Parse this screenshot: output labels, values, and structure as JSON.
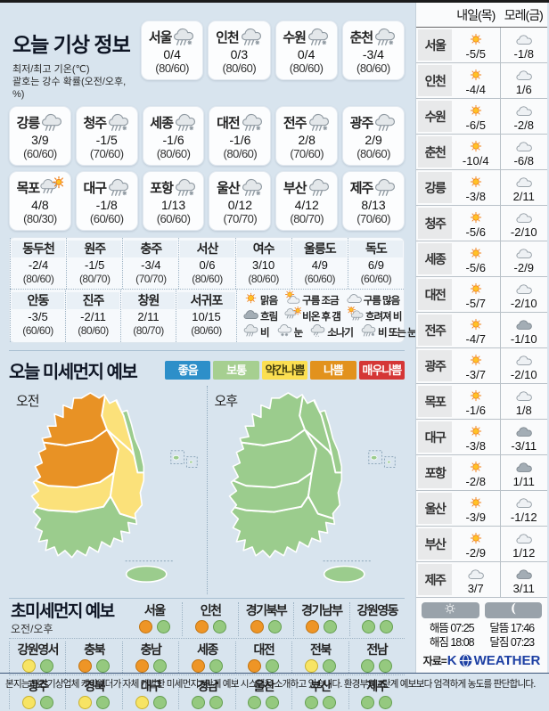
{
  "today": {
    "title": "오늘 기상 정보",
    "sub1": "최저/최고 기온(℃)",
    "sub2": "괄호는 강수 확률(오전/오후, %)",
    "cards_row1": [
      {
        "name": "서울",
        "icon": "rain-snow",
        "temp": "0/4",
        "prob": "(80/60)"
      },
      {
        "name": "인천",
        "icon": "rain-snow",
        "temp": "0/3",
        "prob": "(80/60)"
      },
      {
        "name": "수원",
        "icon": "rain-snow",
        "temp": "0/4",
        "prob": "(80/60)"
      },
      {
        "name": "춘천",
        "icon": "rain-snow",
        "temp": "-3/4",
        "prob": "(80/60)"
      }
    ],
    "cards_row2": [
      {
        "name": "강릉",
        "icon": "rain",
        "temp": "3/9",
        "prob": "(60/60)"
      },
      {
        "name": "청주",
        "icon": "rain-snow",
        "temp": "-1/5",
        "prob": "(70/60)"
      },
      {
        "name": "세종",
        "icon": "rain-snow",
        "temp": "-1/6",
        "prob": "(80/60)"
      },
      {
        "name": "대전",
        "icon": "rain-snow",
        "temp": "-1/6",
        "prob": "(80/60)"
      },
      {
        "name": "전주",
        "icon": "rain-snow",
        "temp": "2/8",
        "prob": "(70/60)"
      },
      {
        "name": "광주",
        "icon": "rain",
        "temp": "2/9",
        "prob": "(80/60)"
      }
    ],
    "cards_row3": [
      {
        "name": "목포",
        "icon": "rain-sun",
        "temp": "4/8",
        "prob": "(80/30)"
      },
      {
        "name": "대구",
        "icon": "rain-snow",
        "temp": "-1/8",
        "prob": "(60/60)"
      },
      {
        "name": "포항",
        "icon": "rain-snow",
        "temp": "1/13",
        "prob": "(60/60)"
      },
      {
        "name": "울산",
        "icon": "rain-snow",
        "temp": "0/12",
        "prob": "(70/70)"
      },
      {
        "name": "부산",
        "icon": "rain",
        "temp": "4/12",
        "prob": "(80/70)"
      },
      {
        "name": "제주",
        "icon": "rain",
        "temp": "8/13",
        "prob": "(70/60)"
      }
    ],
    "minor_row1": [
      {
        "name": "동두천",
        "temp": "-2/4",
        "prob": "(80/60)"
      },
      {
        "name": "원주",
        "temp": "-1/5",
        "prob": "(80/70)"
      },
      {
        "name": "충주",
        "temp": "-3/4",
        "prob": "(70/70)"
      },
      {
        "name": "서산",
        "temp": "0/6",
        "prob": "(80/60)"
      },
      {
        "name": "여수",
        "temp": "3/10",
        "prob": "(80/60)"
      },
      {
        "name": "울릉도",
        "temp": "4/9",
        "prob": "(60/60)"
      },
      {
        "name": "독도",
        "temp": "6/9",
        "prob": "(60/60)"
      }
    ],
    "minor_row2": [
      {
        "name": "안동",
        "temp": "-3/5",
        "prob": "(60/60)"
      },
      {
        "name": "진주",
        "temp": "-2/11",
        "prob": "(80/60)"
      },
      {
        "name": "창원",
        "temp": "2/11",
        "prob": "(80/70)"
      },
      {
        "name": "서귀포",
        "temp": "10/15",
        "prob": "(80/60)"
      }
    ],
    "legend_row1": [
      {
        "icon": "sun",
        "label": "맑음"
      },
      {
        "icon": "cloud-sun",
        "label": "구름 조금"
      },
      {
        "icon": "cloud",
        "label": "구름 많음"
      }
    ],
    "legend_row2": [
      {
        "icon": "cloud-dark",
        "label": "흐림"
      },
      {
        "icon": "rain-sun",
        "label": "비온 후 갬"
      },
      {
        "icon": "sun-rain",
        "label": "흐려져 비"
      }
    ],
    "legend_row3": [
      {
        "icon": "rain",
        "label": "비"
      },
      {
        "icon": "snow",
        "label": "눈"
      },
      {
        "icon": "shower",
        "label": "소나기"
      },
      {
        "icon": "rain-snow",
        "label": "비 또는 눈"
      }
    ]
  },
  "dust": {
    "title": "오늘 미세먼지 예보",
    "levels": [
      {
        "label": "좋음",
        "color": "#2d8fc9",
        "text_color": "#ffffff"
      },
      {
        "label": "보통",
        "color": "#a6cf90",
        "text_color": "#ffffff"
      },
      {
        "label": "약간나쁨",
        "color": "#fbdf51",
        "text_color": "#403c10"
      },
      {
        "label": "나쁨",
        "color": "#e2921d",
        "text_color": "#ffffff"
      },
      {
        "label": "매우나쁨",
        "color": "#d53636",
        "text_color": "#ffffff"
      }
    ],
    "map_morning_label": "오전",
    "map_afternoon_label": "오후",
    "map_levels": {
      "morning": {
        "nw": "bad",
        "gangwon": "slight",
        "east_strip": "normal",
        "center": "bad",
        "gyeongbuk": "slight",
        "midsouth": "slight",
        "south": "normal",
        "jeju": "normal",
        "islands": "normal"
      },
      "afternoon": {
        "nw": "normal",
        "gangwon": "normal",
        "east_strip": "normal",
        "center": "normal",
        "gyeongbuk": "normal",
        "midsouth": "normal",
        "south": "normal",
        "jeju": "normal",
        "islands": "normal"
      }
    }
  },
  "ultrafine": {
    "title": "초미세먼지 예보",
    "sub": "오전/오후",
    "row1": [
      {
        "name": "서울",
        "am": "bad",
        "pm": "normal"
      },
      {
        "name": "인천",
        "am": "bad",
        "pm": "normal"
      },
      {
        "name": "경기북부",
        "am": "bad",
        "pm": "normal"
      },
      {
        "name": "경기남부",
        "am": "bad",
        "pm": "normal"
      },
      {
        "name": "강원영동",
        "am": "normal",
        "pm": "normal"
      }
    ],
    "row2": [
      {
        "name": "강원영서",
        "am": "slight",
        "pm": "normal"
      },
      {
        "name": "충북",
        "am": "bad",
        "pm": "normal"
      },
      {
        "name": "충남",
        "am": "bad",
        "pm": "normal"
      },
      {
        "name": "세종",
        "am": "bad",
        "pm": "normal"
      },
      {
        "name": "대전",
        "am": "bad",
        "pm": "normal"
      },
      {
        "name": "전북",
        "am": "slight",
        "pm": "normal"
      },
      {
        "name": "전남",
        "am": "normal",
        "pm": "normal"
      }
    ],
    "row3": [
      {
        "name": "광주",
        "am": "slight",
        "pm": "normal"
      },
      {
        "name": "경북",
        "am": "slight",
        "pm": "normal"
      },
      {
        "name": "대구",
        "am": "slight",
        "pm": "normal"
      },
      {
        "name": "경남",
        "am": "normal",
        "pm": "normal"
      },
      {
        "name": "울산",
        "am": "normal",
        "pm": "normal"
      },
      {
        "name": "부산",
        "am": "normal",
        "pm": "normal"
      },
      {
        "name": "제주",
        "am": "normal",
        "pm": "normal"
      }
    ]
  },
  "tomorrow": {
    "col1": "내일(목)",
    "col2": "모레(금)",
    "rows": [
      {
        "name": "서울",
        "d1_icon": "sun",
        "d1": "-5/5",
        "d2_icon": "cloud",
        "d2": "-1/8"
      },
      {
        "name": "인천",
        "d1_icon": "sun",
        "d1": "-4/4",
        "d2_icon": "cloud",
        "d2": "1/6"
      },
      {
        "name": "수원",
        "d1_icon": "sun",
        "d1": "-6/5",
        "d2_icon": "cloud",
        "d2": "-2/8"
      },
      {
        "name": "춘천",
        "d1_icon": "sun",
        "d1": "-10/4",
        "d2_icon": "cloud",
        "d2": "-6/8"
      },
      {
        "name": "강릉",
        "d1_icon": "sun",
        "d1": "-3/8",
        "d2_icon": "cloud",
        "d2": "2/11"
      },
      {
        "name": "청주",
        "d1_icon": "sun",
        "d1": "-5/6",
        "d2_icon": "cloud",
        "d2": "-2/10"
      },
      {
        "name": "세종",
        "d1_icon": "sun",
        "d1": "-5/6",
        "d2_icon": "cloud",
        "d2": "-2/9"
      },
      {
        "name": "대전",
        "d1_icon": "sun",
        "d1": "-5/7",
        "d2_icon": "cloud",
        "d2": "-2/10"
      },
      {
        "name": "전주",
        "d1_icon": "sun",
        "d1": "-4/7",
        "d2_icon": "cloud-dark",
        "d2": "-1/10"
      },
      {
        "name": "광주",
        "d1_icon": "sun",
        "d1": "-3/7",
        "d2_icon": "cloud",
        "d2": "-2/10"
      },
      {
        "name": "목포",
        "d1_icon": "sun",
        "d1": "-1/6",
        "d2_icon": "cloud",
        "d2": "1/8"
      },
      {
        "name": "대구",
        "d1_icon": "sun",
        "d1": "-3/8",
        "d2_icon": "cloud-dark",
        "d2": "-3/11"
      },
      {
        "name": "포항",
        "d1_icon": "sun",
        "d1": "-2/8",
        "d2_icon": "cloud-dark",
        "d2": "1/11"
      },
      {
        "name": "울산",
        "d1_icon": "sun",
        "d1": "-3/9",
        "d2_icon": "cloud",
        "d2": "-1/12"
      },
      {
        "name": "부산",
        "d1_icon": "sun",
        "d1": "-2/9",
        "d2_icon": "cloud",
        "d2": "1/12"
      },
      {
        "name": "제주",
        "d1_icon": "cloud",
        "d1": "3/7",
        "d2_icon": "cloud-dark",
        "d2": "3/11"
      }
    ]
  },
  "suntimes": {
    "sunrise": "해뜸 07:25",
    "sunset": "해짐 18:08",
    "moonrise": "달뜸 17:46",
    "moonset": "달짐 07:23",
    "source_prefix": "자료=",
    "brand_k": "K",
    "brand_rest": "WEATHER"
  },
  "colors": {
    "dot": {
      "bad": {
        "bg": "#ee9526",
        "bd": "#c27410"
      },
      "slight": {
        "bg": "#f7e464",
        "bd": "#c9b12d"
      },
      "normal": {
        "bg": "#95c97f",
        "bd": "#649f50"
      }
    },
    "map": {
      "bad": "#e89225",
      "slight": "#fbe17a",
      "normal": "#9bcc8d"
    },
    "brand_blue": "#1c3fa3"
  },
  "footer": "본지는 민간기상업체 케이웨더가 자체 개발한 미세먼지 5단계 예보 시스템을 소개하고 있습니다. 환경부의 4단계 예보보다 엄격하게 농도를 판단합니다."
}
